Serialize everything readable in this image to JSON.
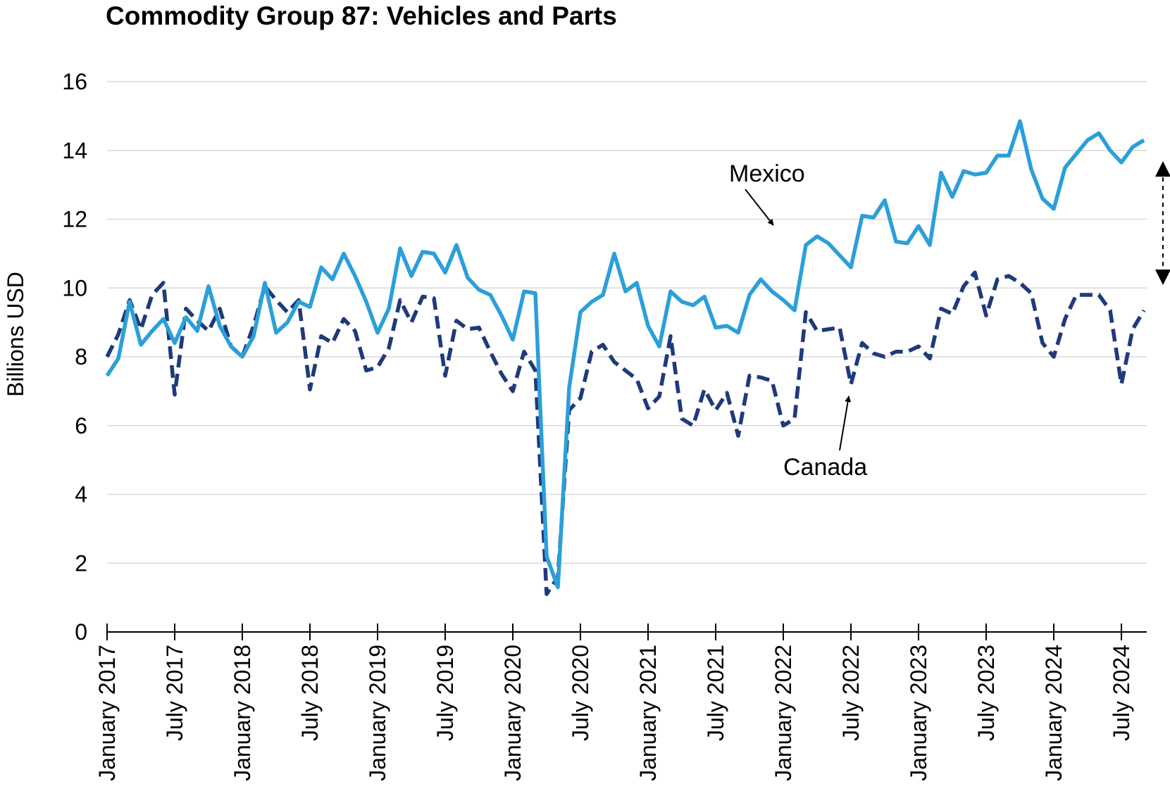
{
  "chart_data": {
    "type": "line",
    "title": "Commodity Group 87: Vehicles and Parts",
    "xlabel": "",
    "ylabel": "Billions USD",
    "ylim": [
      0,
      16
    ],
    "yticks": [
      0,
      2,
      4,
      6,
      8,
      10,
      12,
      14,
      16
    ],
    "xticks": [
      "January 2017",
      "July 2017",
      "January 2018",
      "July 2018",
      "January 2019",
      "July 2019",
      "January 2020",
      "July 2020",
      "January 2021",
      "July 2021",
      "January 2022",
      "July 2022",
      "January 2023",
      "July 2023",
      "January 2024",
      "July 2024"
    ],
    "x_start": "2017-01",
    "x_end": "2024-10",
    "grid": "horizontal",
    "legend": "none",
    "series": [
      {
        "name": "Mexico",
        "color": "#2b9fd9",
        "style": "solid",
        "values": [
          7.45,
          7.95,
          9.6,
          8.35,
          8.75,
          9.1,
          8.4,
          9.15,
          8.75,
          10.05,
          8.9,
          8.3,
          8.0,
          8.6,
          10.15,
          8.7,
          9.0,
          9.6,
          9.45,
          10.6,
          10.25,
          11.0,
          10.35,
          9.6,
          8.7,
          9.4,
          11.15,
          10.35,
          11.05,
          11.0,
          10.45,
          11.25,
          10.3,
          9.95,
          9.8,
          9.2,
          8.5,
          9.9,
          9.85,
          2.2,
          1.3,
          7.1,
          9.3,
          9.6,
          9.8,
          11.0,
          9.9,
          10.15,
          8.9,
          8.3,
          9.9,
          9.6,
          9.5,
          9.75,
          8.85,
          8.9,
          8.7,
          9.8,
          10.25,
          9.9,
          9.65,
          9.35,
          11.25,
          11.5,
          11.3,
          10.95,
          10.6,
          12.1,
          12.05,
          12.55,
          11.35,
          11.3,
          11.8,
          11.25,
          13.35,
          12.65,
          13.4,
          13.3,
          13.35,
          13.85,
          13.85,
          14.85,
          13.45,
          12.6,
          12.3,
          13.5,
          13.9,
          14.3,
          14.5,
          14.0,
          13.65,
          14.1,
          14.3
        ]
      },
      {
        "name": "Canada",
        "color": "#1f3a7a",
        "style": "dashed",
        "values": [
          8.0,
          8.65,
          9.65,
          8.8,
          9.8,
          10.15,
          6.9,
          9.4,
          9.05,
          8.75,
          9.4,
          8.3,
          8.0,
          8.9,
          10.05,
          9.65,
          9.3,
          9.65,
          7.05,
          8.6,
          8.4,
          9.1,
          8.75,
          7.6,
          7.7,
          8.25,
          9.65,
          9.0,
          9.75,
          9.7,
          7.45,
          9.05,
          8.8,
          8.85,
          8.15,
          7.5,
          7.0,
          8.15,
          7.6,
          1.1,
          1.6,
          6.45,
          6.8,
          8.15,
          8.35,
          7.85,
          7.6,
          7.35,
          6.5,
          6.85,
          8.6,
          6.2,
          6.0,
          7.05,
          6.45,
          6.95,
          5.7,
          7.45,
          7.4,
          7.3,
          6.0,
          6.2,
          9.3,
          8.75,
          8.8,
          8.85,
          7.2,
          8.4,
          8.1,
          8.0,
          8.15,
          8.15,
          8.3,
          7.95,
          9.4,
          9.25,
          10.05,
          10.45,
          9.2,
          10.25,
          10.35,
          10.15,
          9.85,
          8.4,
          8.0,
          9.1,
          9.8,
          9.8,
          9.8,
          9.35,
          7.2,
          8.8,
          9.35
        ]
      }
    ],
    "annotations": [
      {
        "text": "Mexico",
        "points_to": "Mexico"
      },
      {
        "text": "Canada",
        "points_to": "Canada"
      }
    ]
  }
}
